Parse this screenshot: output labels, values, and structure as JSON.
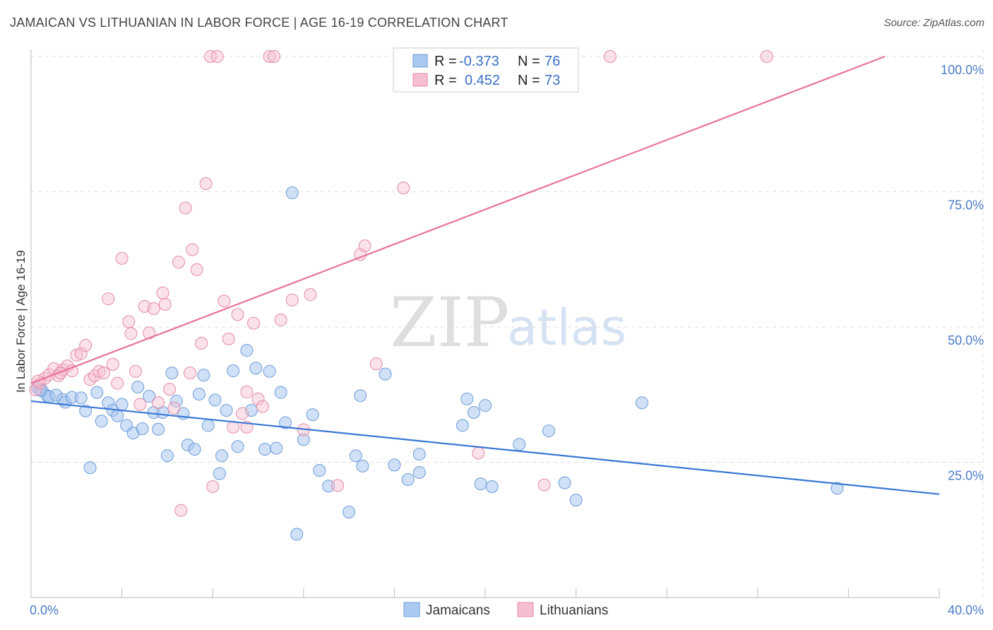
{
  "title": "JAMAICAN VS LITHUANIAN IN LABOR FORCE | AGE 16-19 CORRELATION CHART",
  "source": "Source: ZipAtlas.com",
  "watermark": {
    "zip": "ZIP",
    "atlas": "atlas"
  },
  "legend": {
    "r_label": "R =",
    "n_label": "N =",
    "rows": [
      {
        "r": "-0.373",
        "n": "76",
        "color": "#aac9f0",
        "stroke": "#6d9bd8"
      },
      {
        "r": "0.452",
        "n": "73",
        "color": "#f6bfd0",
        "stroke": "#e48aa8"
      }
    ]
  },
  "bottom_legend": [
    "Jamaicans",
    "Lithuanians"
  ],
  "chart_data": {
    "type": "scatter",
    "title": "JAMAICAN VS LITHUANIAN IN LABOR FORCE | AGE 16-19 CORRELATION CHART",
    "xlabel": "",
    "ylabel": "In Labor Force | Age 16-19",
    "xlim": [
      0,
      40
    ],
    "ylim": [
      0,
      100
    ],
    "x_tick_labels": [
      "0.0%",
      "40.0%"
    ],
    "y_ticks": [
      25,
      50,
      75,
      100
    ],
    "y_tick_labels": [
      "25.0%",
      "50.0%",
      "75.0%",
      "100.0%"
    ],
    "grid": true,
    "colors": {
      "jamaicans": "#3a78d4",
      "lithuanians": "#e8739b"
    },
    "series": [
      {
        "name": "Jamaicans",
        "color": "#3a78d4",
        "trend": {
          "x": [
            0,
            40
          ],
          "y": [
            36.3,
            19.1
          ]
        },
        "points": [
          [
            0.3,
            38.7
          ],
          [
            0.5,
            38.2
          ],
          [
            0.7,
            37.3
          ],
          [
            0.8,
            37.1
          ],
          [
            1.1,
            37.4
          ],
          [
            1.4,
            36.6
          ],
          [
            1.5,
            36.1
          ],
          [
            1.8,
            37.0
          ],
          [
            2.2,
            36.9
          ],
          [
            2.4,
            34.5
          ],
          [
            2.6,
            24.0
          ],
          [
            2.9,
            37.9
          ],
          [
            3.1,
            32.6
          ],
          [
            3.4,
            36.0
          ],
          [
            3.6,
            34.6
          ],
          [
            3.8,
            33.6
          ],
          [
            4.0,
            35.7
          ],
          [
            4.2,
            31.8
          ],
          [
            4.5,
            30.4
          ],
          [
            4.7,
            38.9
          ],
          [
            4.9,
            31.2
          ],
          [
            5.2,
            37.2
          ],
          [
            5.4,
            34.2
          ],
          [
            5.6,
            31.1
          ],
          [
            5.8,
            34.2
          ],
          [
            6.0,
            26.2
          ],
          [
            6.2,
            41.5
          ],
          [
            6.4,
            36.3
          ],
          [
            6.7,
            34.0
          ],
          [
            6.9,
            28.2
          ],
          [
            7.2,
            27.4
          ],
          [
            7.4,
            37.6
          ],
          [
            7.6,
            41.1
          ],
          [
            7.8,
            31.8
          ],
          [
            8.1,
            36.5
          ],
          [
            8.3,
            22.9
          ],
          [
            8.4,
            26.2
          ],
          [
            8.6,
            34.6
          ],
          [
            8.9,
            41.9
          ],
          [
            9.1,
            27.9
          ],
          [
            9.5,
            45.7
          ],
          [
            9.7,
            34.6
          ],
          [
            9.9,
            42.4
          ],
          [
            10.3,
            27.4
          ],
          [
            10.5,
            41.8
          ],
          [
            10.8,
            27.6
          ],
          [
            11.0,
            37.9
          ],
          [
            11.2,
            32.3
          ],
          [
            11.5,
            74.8
          ],
          [
            11.7,
            11.7
          ],
          [
            12.0,
            29.2
          ],
          [
            12.4,
            33.8
          ],
          [
            12.7,
            23.5
          ],
          [
            13.1,
            20.6
          ],
          [
            14.0,
            15.8
          ],
          [
            14.3,
            26.2
          ],
          [
            14.5,
            37.3
          ],
          [
            14.6,
            24.3
          ],
          [
            15.6,
            41.3
          ],
          [
            16.0,
            24.5
          ],
          [
            16.6,
            21.8
          ],
          [
            17.1,
            23.1
          ],
          [
            17.1,
            26.5
          ],
          [
            19.0,
            31.8
          ],
          [
            19.2,
            36.7
          ],
          [
            19.5,
            34.2
          ],
          [
            19.8,
            21.0
          ],
          [
            20.0,
            35.5
          ],
          [
            20.3,
            20.5
          ],
          [
            21.5,
            28.3
          ],
          [
            22.8,
            30.8
          ],
          [
            23.5,
            21.2
          ],
          [
            24.0,
            18.0
          ],
          [
            26.9,
            36.0
          ],
          [
            35.5,
            20.2
          ],
          [
            0.4,
            38.3
          ]
        ]
      },
      {
        "name": "Lithuanians",
        "color": "#e8739b",
        "trend": {
          "x": [
            0,
            37.6
          ],
          "y": [
            39.6,
            100
          ]
        },
        "points": [
          [
            0.2,
            38.4
          ],
          [
            0.4,
            39.6
          ],
          [
            0.6,
            40.5
          ],
          [
            0.8,
            41.2
          ],
          [
            1.0,
            42.3
          ],
          [
            1.2,
            41.0
          ],
          [
            1.4,
            42.1
          ],
          [
            1.6,
            42.8
          ],
          [
            1.8,
            41.9
          ],
          [
            2.0,
            44.8
          ],
          [
            2.2,
            45.1
          ],
          [
            2.4,
            46.6
          ],
          [
            2.6,
            40.3
          ],
          [
            2.8,
            41.0
          ],
          [
            3.0,
            41.8
          ],
          [
            3.2,
            41.5
          ],
          [
            3.4,
            55.2
          ],
          [
            3.6,
            43.1
          ],
          [
            3.8,
            39.6
          ],
          [
            4.0,
            62.7
          ],
          [
            4.3,
            51.0
          ],
          [
            4.4,
            48.8
          ],
          [
            4.6,
            41.8
          ],
          [
            4.8,
            35.7
          ],
          [
            5.0,
            53.8
          ],
          [
            5.2,
            48.9
          ],
          [
            5.4,
            53.4
          ],
          [
            5.6,
            36.0
          ],
          [
            5.8,
            56.3
          ],
          [
            5.9,
            54.2
          ],
          [
            6.1,
            38.5
          ],
          [
            6.3,
            35.0
          ],
          [
            6.5,
            62.0
          ],
          [
            6.6,
            16.1
          ],
          [
            6.8,
            72.0
          ],
          [
            7.0,
            41.5
          ],
          [
            7.1,
            64.3
          ],
          [
            7.3,
            60.6
          ],
          [
            7.5,
            47.0
          ],
          [
            7.7,
            76.5
          ],
          [
            7.9,
            100
          ],
          [
            8.0,
            20.5
          ],
          [
            8.2,
            100
          ],
          [
            8.5,
            54.8
          ],
          [
            8.7,
            47.8
          ],
          [
            8.9,
            31.5
          ],
          [
            9.1,
            52.3
          ],
          [
            9.3,
            34.0
          ],
          [
            9.5,
            38.0
          ],
          [
            9.5,
            31.5
          ],
          [
            9.8,
            50.7
          ],
          [
            10.0,
            36.7
          ],
          [
            10.2,
            35.3
          ],
          [
            10.5,
            100
          ],
          [
            10.7,
            100
          ],
          [
            11.0,
            51.3
          ],
          [
            11.5,
            55.0
          ],
          [
            12.0,
            31.0
          ],
          [
            12.3,
            56.0
          ],
          [
            13.5,
            20.7
          ],
          [
            14.5,
            63.4
          ],
          [
            14.7,
            65.0
          ],
          [
            15.2,
            43.2
          ],
          [
            16.4,
            75.7
          ],
          [
            18.0,
            100
          ],
          [
            19.0,
            100
          ],
          [
            19.7,
            26.7
          ],
          [
            22.0,
            100
          ],
          [
            22.6,
            20.8
          ],
          [
            25.5,
            100
          ],
          [
            32.4,
            100
          ],
          [
            0.3,
            40.0
          ],
          [
            1.3,
            41.5
          ]
        ]
      }
    ]
  }
}
